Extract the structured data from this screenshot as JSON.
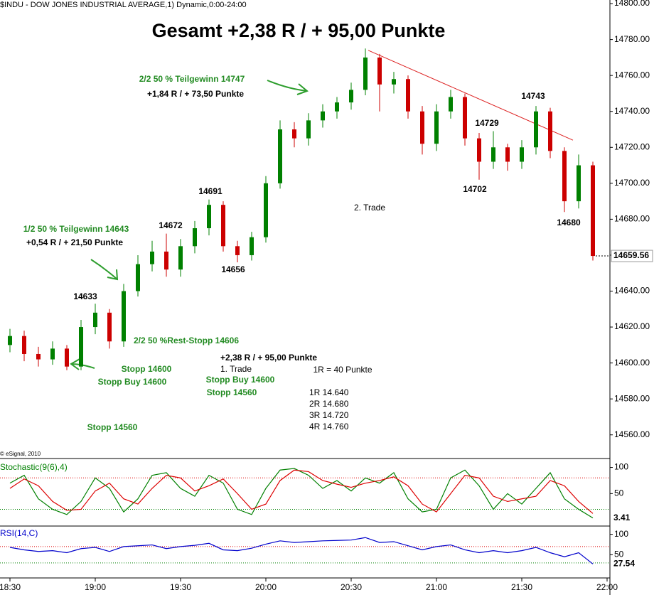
{
  "chart_data": [
    {
      "type": "candlestick",
      "title": "$INDU - DOW JONES INDUSTRIAL AVERAGE,1) Dynamic,0:00-24:00",
      "credit": "© eSignal, 2010",
      "up_color": "#008000",
      "down_color": "#cc0000",
      "xlim": [
        1106.5,
        1321
      ],
      "x": [
        1110,
        1115,
        1120,
        1125,
        1130,
        1135,
        1140,
        1145,
        1150,
        1155,
        1160,
        1165,
        1170,
        1175,
        1180,
        1185,
        1190,
        1195,
        1200,
        1205,
        1210,
        1215,
        1220,
        1225,
        1230,
        1235,
        1240,
        1245,
        1250,
        1255,
        1260,
        1265,
        1270,
        1275,
        1280,
        1285,
        1290,
        1295,
        1300,
        1305,
        1310,
        1315
      ],
      "open": [
        14610,
        14615,
        14605,
        14602,
        14608,
        14598,
        14620,
        14628,
        14612,
        14640,
        14655,
        14662,
        14652,
        14665,
        14675,
        14688,
        14665,
        14660,
        14670,
        14700,
        14730,
        14725,
        14735,
        14740,
        14745,
        14752,
        14770,
        14755,
        14758,
        14740,
        14722,
        14740,
        14748,
        14725,
        14712,
        14720,
        14712,
        14720,
        14740,
        14718,
        14690,
        14710
      ],
      "high": [
        14619,
        14618,
        14609,
        14612,
        14610,
        14624,
        14633,
        14630,
        14644,
        14660,
        14668,
        14672,
        14669,
        14679,
        14691,
        14690,
        14668,
        14673,
        14704,
        14735,
        14734,
        14739,
        14744,
        14748,
        14756,
        14775,
        14772,
        14762,
        14760,
        14743,
        14744,
        14752,
        14750,
        14728,
        14729,
        14722,
        14724,
        14743,
        14742,
        14720,
        14716,
        14712
      ],
      "low": [
        14606,
        14601,
        14598,
        14599,
        14596,
        14596,
        14616,
        14608,
        14609,
        14637,
        14651,
        14648,
        14648,
        14661,
        14671,
        14662,
        14656,
        14657,
        14667,
        14697,
        14720,
        14721,
        14731,
        14736,
        14741,
        14749,
        14740,
        14750,
        14736,
        14716,
        14718,
        14736,
        14721,
        14702,
        14708,
        14707,
        14708,
        14716,
        14714,
        14684,
        14686,
        14657
      ],
      "close": [
        14615,
        14605,
        14602,
        14608,
        14598,
        14620,
        14628,
        14612,
        14640,
        14655,
        14662,
        14652,
        14665,
        14675,
        14688,
        14665,
        14660,
        14670,
        14700,
        14730,
        14725,
        14735,
        14740,
        14745,
        14752,
        14770,
        14755,
        14758,
        14740,
        14722,
        14740,
        14748,
        14725,
        14712,
        14720,
        14712,
        14720,
        14740,
        14718,
        14690,
        14710,
        14659.56
      ],
      "trendline": {
        "color": "#dd2222",
        "x": [
          1236,
          1308
        ],
        "y": [
          14774,
          14724
        ]
      },
      "ylim": [
        14550,
        14802
      ],
      "yticks": [
        {
          "value": 14560,
          "label": "14560.00"
        },
        {
          "value": 14580,
          "label": "14580.00"
        },
        {
          "value": 14600,
          "label": "14600.00"
        },
        {
          "value": 14620,
          "label": "14620.00"
        },
        {
          "value": 14640,
          "label": "14640.00"
        },
        {
          "value": 14660,
          "label": "14660.00"
        },
        {
          "value": 14680,
          "label": "14680.00"
        },
        {
          "value": 14700,
          "label": "14700.00"
        },
        {
          "value": 14720,
          "label": "14720.00"
        },
        {
          "value": 14740,
          "label": "14740.00"
        },
        {
          "value": 14760,
          "label": "14760.00"
        },
        {
          "value": 14780,
          "label": "14780.00"
        },
        {
          "value": 14800,
          "label": "14800.00"
        }
      ],
      "annotations": [
        "Gesamt +2,38 R / + 95,00 Punkte",
        "2/2 50 % Teilgewinn 14747",
        "+1,84 R / + 73,50 Punkte",
        "14743",
        "14729",
        "14702",
        "2. Trade",
        "14691",
        "14672",
        "14680",
        "1/2 50 % Teilgewinn 14643",
        "+0,54 R / + 21,50 Punkte",
        "14656",
        "14633",
        "2/2 50 %Rest-Stopp 14606",
        "+2,38 R / + 95,00 Punkte",
        "Stopp 14600",
        "1. Trade",
        "1R = 40 Punkte",
        "Stopp Buy 14600",
        "Stopp Buy 14600",
        "Stopp 14560",
        "1R 14.640",
        "2R 14.680",
        "3R 14.720",
        "4R 14.760",
        "Stopp 14560"
      ]
    },
    {
      "type": "line",
      "title": "Stochastic(9(6),4)",
      "xlim": [
        1106.5,
        1321
      ],
      "x": [
        1110,
        1115,
        1120,
        1125,
        1130,
        1135,
        1140,
        1145,
        1150,
        1155,
        1160,
        1165,
        1170,
        1175,
        1180,
        1185,
        1190,
        1195,
        1200,
        1205,
        1210,
        1215,
        1220,
        1225,
        1230,
        1235,
        1240,
        1245,
        1250,
        1255,
        1260,
        1265,
        1270,
        1275,
        1280,
        1285,
        1290,
        1295,
        1300,
        1305,
        1310,
        1315
      ],
      "series": [
        {
          "color": "#008000",
          "values": [
            70,
            85,
            40,
            20,
            10,
            35,
            80,
            60,
            15,
            40,
            85,
            90,
            60,
            45,
            85,
            70,
            20,
            10,
            60,
            95,
            98,
            85,
            60,
            75,
            55,
            80,
            70,
            90,
            40,
            15,
            20,
            80,
            95,
            65,
            20,
            50,
            30,
            60,
            90,
            40,
            20,
            3.41
          ]
        },
        {
          "color": "#dd0000",
          "values": [
            60,
            78,
            65,
            35,
            18,
            20,
            55,
            70,
            40,
            30,
            60,
            85,
            80,
            55,
            65,
            78,
            50,
            20,
            30,
            75,
            95,
            92,
            75,
            68,
            62,
            70,
            75,
            82,
            65,
            30,
            15,
            50,
            85,
            80,
            45,
            35,
            40,
            45,
            75,
            65,
            35,
            12
          ]
        }
      ],
      "levels": [
        {
          "value": 80,
          "color": "#dd0000"
        },
        {
          "value": 20,
          "color": "#008000"
        }
      ],
      "ylim": [
        -12,
        113
      ],
      "yticks": [
        50,
        100
      ]
    },
    {
      "type": "line",
      "title": "RSI(14,C)",
      "xlim": [
        1106.5,
        1321
      ],
      "x": [
        1110,
        1115,
        1120,
        1125,
        1130,
        1135,
        1140,
        1145,
        1150,
        1155,
        1160,
        1165,
        1170,
        1175,
        1180,
        1185,
        1190,
        1195,
        1200,
        1205,
        1210,
        1215,
        1220,
        1225,
        1230,
        1235,
        1240,
        1245,
        1250,
        1255,
        1260,
        1265,
        1270,
        1275,
        1280,
        1285,
        1290,
        1295,
        1300,
        1305,
        1310,
        1315
      ],
      "series": [
        {
          "color": "#0000cc",
          "values": [
            68,
            62,
            58,
            60,
            55,
            65,
            68,
            58,
            70,
            72,
            74,
            65,
            70,
            73,
            78,
            62,
            60,
            66,
            76,
            84,
            80,
            82,
            84,
            85,
            86,
            92,
            80,
            82,
            72,
            62,
            70,
            74,
            62,
            55,
            60,
            55,
            60,
            68,
            55,
            45,
            55,
            27.54
          ]
        }
      ],
      "levels": [
        {
          "value": 70,
          "color": "#dd0000"
        },
        {
          "value": 30,
          "color": "#008000"
        }
      ],
      "ylim": [
        -5,
        115
      ],
      "yticks": [
        50,
        100
      ],
      "xticks": [
        {
          "value": 1110,
          "label": "18:30"
        },
        {
          "value": 1140,
          "label": "19:00"
        },
        {
          "value": 1170,
          "label": "19:30"
        },
        {
          "value": 1200,
          "label": "20:00"
        },
        {
          "value": 1230,
          "label": "20:30"
        },
        {
          "value": 1260,
          "label": "21:00"
        },
        {
          "value": 1290,
          "label": "21:30"
        },
        {
          "value": 1320,
          "label": "22:00"
        }
      ]
    }
  ]
}
